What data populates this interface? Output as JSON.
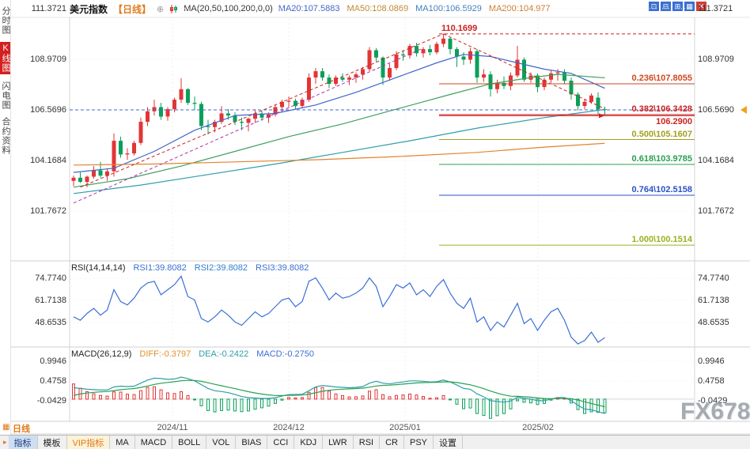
{
  "window": {
    "watermark": "FX678"
  },
  "header": {
    "title": "美元指数",
    "period": "【日线】",
    "expand_icon": "⊕",
    "ma_label": "MA(20,50,100,200,0,0)",
    "ma_values": [
      {
        "label": "MA20:107.5883",
        "color": "#4066c9"
      },
      {
        "label": "MA50:108.0869",
        "color": "#c0862e"
      },
      {
        "label": "MA100:106.5929",
        "color": "#3f7fc1"
      },
      {
        "label": "MA200:104.977",
        "color": "#cc7a2e"
      }
    ],
    "layout_icons": [
      "⊡",
      "⊟",
      "⊞",
      "▦"
    ],
    "close_icon": "✕"
  },
  "sidebar": {
    "items": [
      {
        "label": "分时图",
        "active": false
      },
      {
        "label": "K线图",
        "active": true
      },
      {
        "label": "闪电图",
        "active": false
      },
      {
        "label": "合约资料",
        "active": false
      }
    ]
  },
  "price_axis": {
    "left": [
      "111.3721",
      "108.9709",
      "106.5696",
      "104.1684",
      "101.7672"
    ],
    "right": [
      "111.3721",
      "108.9709",
      "106.5690",
      "104.1684",
      "101.7672"
    ],
    "tick_values": [
      111.3721,
      108.9709,
      106.5696,
      104.1684,
      101.7672
    ]
  },
  "rsi_panel": {
    "name": "RSI(14,14,14)",
    "values": [
      {
        "label": "RSI1:39.8082",
        "color": "#3a6fd8"
      },
      {
        "label": "RSI2:39.8082",
        "color": "#2f7fd0"
      },
      {
        "label": "RSI3:39.8082",
        "color": "#3a6fd8"
      }
    ],
    "axis": [
      "74.7740",
      "61.7138",
      "48.6535"
    ],
    "axis_values": [
      74.774,
      61.7138,
      48.6535
    ]
  },
  "macd_panel": {
    "name": "MACD(26,12,9)",
    "values": [
      {
        "label": "DIFF:-0.3797",
        "color": "#e0922a"
      },
      {
        "label": "DEA:-0.2422",
        "color": "#2f9ea8"
      },
      {
        "label": "MACD:-0.2750",
        "color": "#3a6fd8"
      }
    ],
    "axis": [
      "0.9946",
      "0.4758",
      "-0.0429"
    ],
    "axis_values": [
      0.9946,
      0.4758,
      -0.0429
    ]
  },
  "xaxis": {
    "months": [
      "2024/11",
      "2024/12",
      "2025/01",
      "2025/02"
    ],
    "period_label": "日线"
  },
  "toolbar": {
    "marker": "▸",
    "items": [
      {
        "label": "指标",
        "state": "selected"
      },
      {
        "label": "模板",
        "state": "normal"
      },
      {
        "label": "VIP指标",
        "state": "vip"
      },
      {
        "label": "MA",
        "state": "normal"
      },
      {
        "label": "MACD",
        "state": "normal"
      },
      {
        "label": "BOLL",
        "state": "normal"
      },
      {
        "label": "VOL",
        "state": "normal"
      },
      {
        "label": "BIAS",
        "state": "normal"
      },
      {
        "label": "CCI",
        "state": "normal"
      },
      {
        "label": "KDJ",
        "state": "normal"
      },
      {
        "label": "LWR",
        "state": "normal"
      },
      {
        "label": "RSI",
        "state": "normal"
      },
      {
        "label": "CR",
        "state": "normal"
      },
      {
        "label": "PSY",
        "state": "normal"
      },
      {
        "label": "设置",
        "state": "normal"
      }
    ]
  },
  "chart_data": [
    {
      "type": "candlestick",
      "title": "美元指数 日线",
      "ylim": [
        99.6,
        111.8
      ],
      "up_color": "#e23535",
      "down_color": "#0aa05a",
      "ohlc": [
        [
          103.2,
          103.45,
          102.95,
          103.35
        ],
        [
          103.35,
          103.6,
          103.1,
          103.15
        ],
        [
          103.15,
          103.45,
          102.9,
          103.4
        ],
        [
          103.4,
          103.9,
          103.3,
          103.7
        ],
        [
          103.7,
          104.1,
          103.35,
          103.45
        ],
        [
          103.45,
          103.8,
          103.2,
          103.65
        ],
        [
          103.65,
          105.45,
          103.4,
          105.1
        ],
        [
          105.1,
          105.3,
          104.3,
          104.45
        ],
        [
          104.45,
          104.75,
          104.2,
          104.5
        ],
        [
          104.5,
          105.1,
          104.4,
          105.0
        ],
        [
          105.0,
          106.2,
          104.9,
          106.0
        ],
        [
          106.0,
          106.7,
          105.8,
          106.5
        ],
        [
          106.5,
          107.05,
          106.3,
          106.7
        ],
        [
          106.7,
          106.9,
          106.1,
          106.25
        ],
        [
          106.25,
          106.7,
          106.05,
          106.6
        ],
        [
          106.6,
          107.15,
          106.45,
          107.05
        ],
        [
          107.05,
          108.07,
          106.9,
          107.55
        ],
        [
          107.55,
          107.6,
          106.8,
          106.9
        ],
        [
          106.9,
          107.2,
          106.55,
          106.85
        ],
        [
          106.85,
          106.95,
          105.6,
          105.8
        ],
        [
          105.8,
          106.1,
          105.4,
          105.75
        ],
        [
          105.75,
          106.1,
          105.5,
          106.0
        ],
        [
          106.0,
          106.75,
          105.9,
          106.4
        ],
        [
          106.4,
          106.6,
          106.1,
          106.3
        ],
        [
          106.3,
          106.45,
          105.85,
          106.0
        ],
        [
          106.0,
          106.2,
          105.6,
          105.95
        ],
        [
          105.95,
          106.2,
          105.55,
          106.15
        ],
        [
          106.15,
          106.6,
          105.95,
          106.4
        ],
        [
          106.4,
          106.55,
          106.05,
          106.2
        ],
        [
          106.2,
          106.45,
          105.95,
          106.35
        ],
        [
          106.35,
          106.8,
          106.25,
          106.7
        ],
        [
          106.7,
          107.05,
          106.5,
          106.95
        ],
        [
          106.95,
          107.2,
          106.7,
          107.0
        ],
        [
          107.0,
          107.1,
          106.6,
          106.75
        ],
        [
          106.75,
          107.15,
          106.65,
          107.05
        ],
        [
          107.05,
          108.3,
          106.95,
          108.1
        ],
        [
          108.1,
          108.55,
          107.8,
          108.4
        ],
        [
          108.4,
          108.55,
          107.95,
          108.1
        ],
        [
          108.1,
          108.25,
          107.6,
          107.8
        ],
        [
          107.8,
          108.2,
          107.7,
          108.1
        ],
        [
          108.1,
          108.3,
          107.9,
          108.0
        ],
        [
          108.0,
          108.2,
          107.75,
          108.1
        ],
        [
          108.1,
          108.35,
          107.85,
          108.25
        ],
        [
          108.25,
          108.6,
          108.0,
          108.5
        ],
        [
          108.5,
          109.55,
          108.4,
          109.4
        ],
        [
          109.4,
          109.5,
          108.85,
          109.05
        ],
        [
          109.05,
          109.1,
          107.75,
          108.1
        ],
        [
          108.1,
          108.75,
          107.95,
          108.55
        ],
        [
          108.55,
          109.35,
          108.45,
          109.2
        ],
        [
          109.2,
          109.4,
          108.9,
          109.15
        ],
        [
          109.15,
          109.7,
          109.0,
          109.6
        ],
        [
          109.6,
          109.75,
          109.1,
          109.25
        ],
        [
          109.25,
          109.55,
          109.05,
          109.45
        ],
        [
          109.45,
          109.65,
          109.15,
          109.3
        ],
        [
          109.3,
          109.8,
          109.2,
          109.7
        ],
        [
          109.7,
          110.17,
          109.55,
          109.95
        ],
        [
          109.95,
          110.0,
          109.2,
          109.45
        ],
        [
          109.45,
          109.55,
          108.6,
          109.1
        ],
        [
          109.1,
          109.3,
          108.7,
          108.95
        ],
        [
          108.95,
          109.5,
          108.75,
          109.35
        ],
        [
          109.35,
          109.45,
          107.85,
          108.1
        ],
        [
          108.1,
          108.5,
          107.9,
          108.25
        ],
        [
          108.25,
          108.4,
          107.2,
          107.55
        ],
        [
          107.55,
          108.0,
          107.35,
          107.85
        ],
        [
          107.85,
          108.15,
          107.55,
          107.7
        ],
        [
          107.7,
          108.35,
          107.5,
          108.2
        ],
        [
          108.2,
          109.6,
          108.1,
          108.95
        ],
        [
          108.95,
          109.05,
          107.9,
          108.0
        ],
        [
          108.0,
          108.35,
          107.85,
          108.2
        ],
        [
          108.2,
          108.3,
          107.4,
          107.65
        ],
        [
          107.65,
          108.1,
          107.5,
          108.0
        ],
        [
          108.0,
          108.45,
          107.85,
          108.3
        ],
        [
          108.3,
          108.5,
          107.95,
          108.35
        ],
        [
          108.35,
          108.5,
          107.8,
          107.95
        ],
        [
          107.95,
          108.1,
          107.05,
          107.3
        ],
        [
          107.3,
          107.4,
          106.55,
          106.75
        ],
        [
          106.75,
          107.1,
          106.6,
          106.95
        ],
        [
          106.95,
          107.35,
          106.85,
          107.25
        ],
        [
          107.15,
          107.4,
          106.35,
          106.6
        ],
        [
          106.6,
          106.72,
          106.3,
          106.57
        ]
      ],
      "moving_averages": [
        {
          "name": "MA20",
          "color": "#4066c9",
          "points": [
            [
              0,
              103.6
            ],
            [
              6,
              103.8
            ],
            [
              12,
              104.6
            ],
            [
              18,
              105.6
            ],
            [
              24,
              106.3
            ],
            [
              30,
              106.4
            ],
            [
              36,
              106.8
            ],
            [
              42,
              107.4
            ],
            [
              48,
              108.1
            ],
            [
              54,
              108.8
            ],
            [
              58,
              109.2
            ],
            [
              62,
              109.1
            ],
            [
              66,
              108.8
            ],
            [
              70,
              108.5
            ],
            [
              74,
              108.3
            ],
            [
              79,
              107.59
            ]
          ]
        },
        {
          "name": "MA50",
          "color": "#3fa05f",
          "points": [
            [
              0,
              102.9
            ],
            [
              8,
              103.3
            ],
            [
              16,
              103.9
            ],
            [
              24,
              104.6
            ],
            [
              32,
              105.3
            ],
            [
              40,
              105.9
            ],
            [
              48,
              106.6
            ],
            [
              56,
              107.3
            ],
            [
              62,
              107.8
            ],
            [
              68,
              108.1
            ],
            [
              72,
              108.25
            ],
            [
              79,
              108.09
            ]
          ]
        },
        {
          "name": "MA100",
          "color": "#2f9ea8",
          "points": [
            [
              0,
              102.6
            ],
            [
              10,
              103.0
            ],
            [
              20,
              103.5
            ],
            [
              30,
              104.0
            ],
            [
              40,
              104.55
            ],
            [
              50,
              105.1
            ],
            [
              60,
              105.7
            ],
            [
              70,
              106.2
            ],
            [
              79,
              106.59
            ]
          ]
        },
        {
          "name": "MA200",
          "color": "#e2842d",
          "points": [
            [
              0,
              103.95
            ],
            [
              12,
              104.0
            ],
            [
              24,
              104.1
            ],
            [
              36,
              104.2
            ],
            [
              48,
              104.35
            ],
            [
              60,
              104.55
            ],
            [
              70,
              104.8
            ],
            [
              79,
              104.98
            ]
          ]
        }
      ],
      "trendlines": [
        {
          "from": [
            1,
            102.9
          ],
          "to": [
            55,
            110.17
          ],
          "color": "#cc2222",
          "dashed": true
        },
        {
          "from": [
            0,
            102.15
          ],
          "to": [
            52,
            109.5
          ],
          "color": "#b030b0",
          "dashed": true
        },
        {
          "from": [
            55,
            110.17
          ],
          "to": [
            79,
            106.62
          ],
          "color": "#cc2222",
          "dashed": true
        }
      ],
      "fib_levels": [
        {
          "label": "110.1699",
          "price": 110.1699,
          "color": "#cc2222",
          "dashed": true,
          "label_side": "left"
        },
        {
          "label": "0.236\\107.8055",
          "price": 107.8055,
          "color": "#cc4a22"
        },
        {
          "label": "0.382\\106.3428",
          "price": 106.3428,
          "color": "#cc2222"
        },
        {
          "label": "106.2900",
          "price": 106.29,
          "color": "#cc2222",
          "label_below": true,
          "marker": true
        },
        {
          "label": "0.500\\105.1607",
          "price": 105.1607,
          "color": "#a0a020"
        },
        {
          "label": "0.618\\103.9785",
          "price": 103.9785,
          "color": "#28a050"
        },
        {
          "label": "0.764\\102.5158",
          "price": 102.5158,
          "color": "#2b50c8"
        },
        {
          "label": "1.000\\100.1514",
          "price": 100.1514,
          "color": "#9cb020"
        }
      ],
      "current_price_line": {
        "price": 106.569,
        "color": "#4169d0"
      }
    },
    {
      "type": "line",
      "name": "RSI",
      "line_color": "#3a6fd8",
      "values": [
        52,
        50,
        54,
        57,
        53,
        56,
        68,
        61,
        59,
        63,
        69,
        72,
        73,
        65,
        68,
        71,
        76,
        64,
        62,
        51,
        49,
        52,
        56,
        53,
        49,
        47,
        51,
        55,
        52,
        54,
        58,
        62,
        63,
        58,
        61,
        73,
        75,
        69,
        62,
        66,
        63,
        64,
        66,
        69,
        75,
        70,
        58,
        64,
        71,
        69,
        72,
        65,
        68,
        64,
        70,
        74,
        66,
        60,
        57,
        63,
        49,
        52,
        44,
        49,
        46,
        53,
        60,
        48,
        51,
        44,
        50,
        55,
        57,
        50,
        40,
        36,
        38,
        43,
        37,
        39.8
      ]
    },
    {
      "type": "bar",
      "name": "MACD",
      "dif_color": "#2f9ea8",
      "dea_color": "#28a050",
      "bar_up_color": "#e23535",
      "bar_down_color": "#0aa05a",
      "dif": [
        0.3,
        0.28,
        0.26,
        0.25,
        0.24,
        0.24,
        0.32,
        0.34,
        0.33,
        0.34,
        0.42,
        0.5,
        0.55,
        0.54,
        0.52,
        0.53,
        0.58,
        0.54,
        0.48,
        0.38,
        0.28,
        0.22,
        0.2,
        0.17,
        0.12,
        0.07,
        0.04,
        0.03,
        0.02,
        0.02,
        0.04,
        0.08,
        0.12,
        0.12,
        0.13,
        0.22,
        0.32,
        0.36,
        0.34,
        0.32,
        0.31,
        0.3,
        0.31,
        0.33,
        0.42,
        0.47,
        0.42,
        0.4,
        0.43,
        0.45,
        0.48,
        0.48,
        0.47,
        0.45,
        0.46,
        0.5,
        0.45,
        0.37,
        0.28,
        0.26,
        0.14,
        0.06,
        -0.04,
        -0.06,
        -0.08,
        -0.05,
        0.05,
        0.02,
        0.0,
        -0.04,
        -0.04,
        0.0,
        0.04,
        0.04,
        -0.04,
        -0.16,
        -0.26,
        -0.28,
        -0.33,
        -0.38
      ]
    }
  ]
}
